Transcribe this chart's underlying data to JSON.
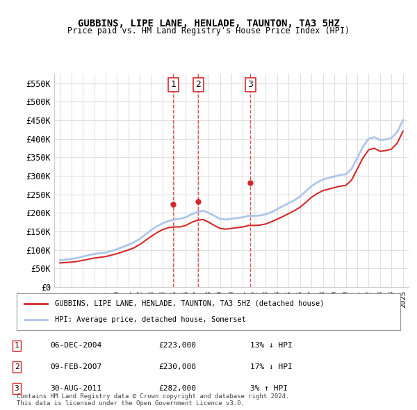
{
  "title": "GUBBINS, LIPE LANE, HENLADE, TAUNTON, TA3 5HZ",
  "subtitle": "Price paid vs. HM Land Registry's House Price Index (HPI)",
  "ylabel": "",
  "ylim": [
    0,
    575000
  ],
  "yticks": [
    0,
    50000,
    100000,
    150000,
    200000,
    250000,
    300000,
    350000,
    400000,
    450000,
    500000,
    550000
  ],
  "ytick_labels": [
    "£0",
    "£50K",
    "£100K",
    "£150K",
    "£200K",
    "£250K",
    "£300K",
    "£350K",
    "£400K",
    "£450K",
    "£500K",
    "£550K"
  ],
  "hpi_color": "#aec6e8",
  "price_color": "#d62728",
  "vline_color": "#d62728",
  "grid_color": "#e0e0e0",
  "bg_color": "#ffffff",
  "transaction_dates": [
    2004.92,
    2007.11,
    2011.66
  ],
  "transaction_labels": [
    "1",
    "2",
    "3"
  ],
  "transaction_prices": [
    223000,
    230000,
    282000
  ],
  "legend_label_red": "GUBBINS, LIPE LANE, HENLADE, TAUNTON, TA3 5HZ (detached house)",
  "legend_label_blue": "HPI: Average price, detached house, Somerset",
  "table_data": [
    [
      "1",
      "06-DEC-2004",
      "£223,000",
      "13% ↓ HPI"
    ],
    [
      "2",
      "09-FEB-2007",
      "£230,000",
      "17% ↓ HPI"
    ],
    [
      "3",
      "30-AUG-2011",
      "£282,000",
      "3% ↑ HPI"
    ]
  ],
  "footnote": "Contains HM Land Registry data © Crown copyright and database right 2024.\nThis data is licensed under the Open Government Licence v3.0.",
  "hpi_x": [
    1995,
    1995.5,
    1996,
    1996.5,
    1997,
    1997.5,
    1998,
    1998.5,
    1999,
    1999.5,
    2000,
    2000.5,
    2001,
    2001.5,
    2002,
    2002.5,
    2003,
    2003.5,
    2004,
    2004.5,
    2005,
    2005.5,
    2006,
    2006.5,
    2007,
    2007.5,
    2008,
    2008.5,
    2009,
    2009.5,
    2010,
    2010.5,
    2011,
    2011.5,
    2012,
    2012.5,
    2013,
    2013.5,
    2014,
    2014.5,
    2015,
    2015.5,
    2016,
    2016.5,
    2017,
    2017.5,
    2018,
    2018.5,
    2019,
    2019.5,
    2020,
    2020.5,
    2021,
    2021.5,
    2022,
    2022.5,
    2023,
    2023.5,
    2024,
    2024.5,
    2025
  ],
  "hpi_y": [
    72000,
    74000,
    76000,
    78000,
    82000,
    86000,
    89000,
    91000,
    93000,
    97000,
    102000,
    108000,
    114000,
    121000,
    130000,
    142000,
    154000,
    164000,
    172000,
    178000,
    182000,
    184000,
    188000,
    196000,
    202000,
    206000,
    200000,
    192000,
    184000,
    182000,
    184000,
    186000,
    188000,
    192000,
    192000,
    193000,
    196000,
    202000,
    210000,
    218000,
    226000,
    234000,
    244000,
    258000,
    272000,
    282000,
    290000,
    294000,
    298000,
    302000,
    304000,
    318000,
    348000,
    378000,
    400000,
    404000,
    396000,
    398000,
    402000,
    418000,
    450000
  ],
  "price_x": [
    1995,
    1995.5,
    1996,
    1996.5,
    1997,
    1997.5,
    1998,
    1998.5,
    1999,
    1999.5,
    2000,
    2000.5,
    2001,
    2001.5,
    2002,
    2002.5,
    2003,
    2003.5,
    2004,
    2004.5,
    2005,
    2005.5,
    2006,
    2006.5,
    2007,
    2007.5,
    2008,
    2008.5,
    2009,
    2009.5,
    2010,
    2010.5,
    2011,
    2011.5,
    2012,
    2012.5,
    2013,
    2013.5,
    2014,
    2014.5,
    2015,
    2015.5,
    2016,
    2016.5,
    2017,
    2017.5,
    2018,
    2018.5,
    2019,
    2019.5,
    2020,
    2020.5,
    2021,
    2021.5,
    2022,
    2022.5,
    2023,
    2023.5,
    2024,
    2024.5,
    2025
  ],
  "price_y": [
    65000,
    66000,
    67000,
    69000,
    72000,
    75000,
    78000,
    80000,
    82000,
    86000,
    90000,
    95000,
    100000,
    106000,
    115000,
    126000,
    137000,
    147000,
    155000,
    160000,
    162000,
    162000,
    166000,
    174000,
    180000,
    182000,
    175000,
    166000,
    158000,
    156000,
    158000,
    160000,
    162000,
    166000,
    166000,
    167000,
    170000,
    176000,
    183000,
    190000,
    198000,
    206000,
    215000,
    228000,
    242000,
    252000,
    260000,
    264000,
    268000,
    272000,
    274000,
    288000,
    318000,
    348000,
    370000,
    374000,
    366000,
    368000,
    372000,
    388000,
    420000
  ]
}
